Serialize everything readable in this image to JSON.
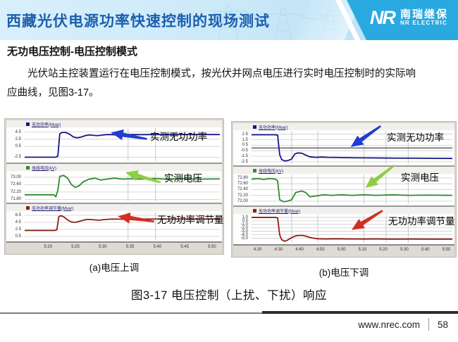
{
  "header": {
    "title": "西藏光伏电源功率快速控制的现场测试",
    "logo": {
      "nr": "NR",
      "cn": "南瑞继保",
      "en": "NR ELECTRIC"
    }
  },
  "content": {
    "heading": "无功电压控制-电压控制模式",
    "paragraph": "光伏站主控装置运行在电压控制模式，按光伏并网点电压进行实时电压控制时的实际响应曲线，见图3-17。",
    "figure_caption": "图3-17 电压控制（上扰、下扰）响应"
  },
  "footer": {
    "url": "www.nrec.com",
    "page": "58"
  },
  "chart_data": [
    {
      "type": "line",
      "caption": "(a)电压上调",
      "xticks": [
        "5:20",
        "5:25",
        "5:30",
        "5:35",
        "5:40",
        "5:45",
        "5:50"
      ],
      "vgrid": [
        0.53,
        0.67
      ],
      "panels": [
        {
          "legend": "无功功率(Mvar)",
          "color": "#15158a",
          "yticks": [
            "4.5",
            "2.5",
            "0.5",
            "-2.5"
          ],
          "ymin": -3.6,
          "ymax": 5.6,
          "annotation": {
            "text": "实测无功功率",
            "color": "#1f3ed0",
            "angle": 10
          },
          "points": [
            [
              0,
              -2.5
            ],
            [
              0.16,
              -2.5
            ],
            [
              0.17,
              -2.2
            ],
            [
              0.18,
              4.0
            ],
            [
              0.19,
              4.35
            ],
            [
              0.21,
              4.4
            ],
            [
              0.23,
              3.9
            ],
            [
              0.25,
              3.1
            ],
            [
              0.27,
              2.9
            ],
            [
              0.29,
              3.1
            ],
            [
              0.31,
              3.5
            ],
            [
              0.33,
              3.7
            ],
            [
              0.35,
              3.6
            ],
            [
              0.37,
              3.5
            ],
            [
              0.39,
              3.6
            ],
            [
              0.41,
              3.75
            ],
            [
              0.44,
              3.8
            ],
            [
              0.47,
              3.7
            ],
            [
              0.5,
              3.75
            ],
            [
              0.54,
              3.8
            ],
            [
              0.6,
              3.78
            ],
            [
              0.68,
              3.8
            ],
            [
              0.78,
              3.8
            ],
            [
              0.88,
              3.8
            ],
            [
              1,
              3.8
            ]
          ]
        },
        {
          "legend": "母线电压(kV)",
          "color": "#2e8b2e",
          "yticks": [
            "73.00",
            "72.60",
            "72.20",
            "71.80"
          ],
          "ymin": 71.7,
          "ymax": 73.3,
          "annotation": {
            "text": "实测电压",
            "color": "#8fce44",
            "angle": 16
          },
          "points": [
            [
              0,
              72.05
            ],
            [
              0.15,
              72.05
            ],
            [
              0.16,
              71.95
            ],
            [
              0.17,
              72.3
            ],
            [
              0.18,
              73.05
            ],
            [
              0.2,
              73.1
            ],
            [
              0.22,
              72.95
            ],
            [
              0.24,
              72.6
            ],
            [
              0.26,
              72.45
            ],
            [
              0.28,
              72.55
            ],
            [
              0.3,
              72.75
            ],
            [
              0.33,
              72.9
            ],
            [
              0.36,
              72.95
            ],
            [
              0.39,
              72.85
            ],
            [
              0.42,
              72.9
            ],
            [
              0.46,
              72.95
            ],
            [
              0.5,
              72.9
            ],
            [
              0.55,
              72.92
            ],
            [
              0.6,
              72.9
            ],
            [
              0.66,
              72.93
            ],
            [
              0.72,
              72.9
            ],
            [
              0.8,
              72.92
            ],
            [
              0.9,
              72.9
            ],
            [
              1,
              72.91
            ]
          ]
        },
        {
          "legend": "无功功率调节量(Mvar)",
          "color": "#8b2015",
          "yticks": [
            "6.5",
            "4.5",
            "2.5",
            "0.5"
          ],
          "ymin": -0.5,
          "ymax": 7.5,
          "annotation": {
            "text": "无功功率调节量",
            "color": "#d03020",
            "angle": 8
          },
          "points": [
            [
              0,
              2.2
            ],
            [
              0.155,
              2.2
            ],
            [
              0.165,
              2.4
            ],
            [
              0.175,
              6.1
            ],
            [
              0.185,
              6.4
            ],
            [
              0.2,
              6.1
            ],
            [
              0.22,
              5.2
            ],
            [
              0.24,
              4.6
            ],
            [
              0.26,
              4.5
            ],
            [
              0.28,
              4.8
            ],
            [
              0.3,
              5.1
            ],
            [
              0.32,
              5.35
            ],
            [
              0.35,
              5.25
            ],
            [
              0.38,
              5.1
            ],
            [
              0.41,
              5.3
            ],
            [
              0.45,
              5.45
            ],
            [
              0.5,
              5.4
            ],
            [
              0.56,
              5.45
            ],
            [
              0.63,
              5.45
            ],
            [
              0.72,
              5.45
            ],
            [
              0.82,
              5.45
            ],
            [
              1,
              5.45
            ]
          ]
        }
      ]
    },
    {
      "type": "line",
      "caption": "(b)电压下调",
      "xticks": [
        "4:20",
        "4:30",
        "4:40",
        "4:50",
        "5:00",
        "5:10",
        "5:20",
        "5:30",
        "5:40",
        "5:50"
      ],
      "vgrid": [
        0.2,
        0.33,
        0.56,
        0.67,
        0.78
      ],
      "panels": [
        {
          "legend": "无功功率(Mvar)",
          "color": "#15158a",
          "yticks": [
            "2.5",
            "1.5",
            "0.5",
            "-0.5",
            "-1.5",
            "-2.5"
          ],
          "ymin": -2.9,
          "ymax": 3.1,
          "zero": 0,
          "annotation": {
            "text": "实测无功功率",
            "color": "#1f3ed0",
            "angle": -35
          },
          "points": [
            [
              0,
              2.4
            ],
            [
              0.12,
              2.4
            ],
            [
              0.13,
              2.3
            ],
            [
              0.14,
              -1.2
            ],
            [
              0.15,
              -2.1
            ],
            [
              0.165,
              -2.35
            ],
            [
              0.18,
              -2.3
            ],
            [
              0.2,
              -2.0
            ],
            [
              0.215,
              -1.1
            ],
            [
              0.23,
              -0.9
            ],
            [
              0.25,
              -0.95
            ],
            [
              0.27,
              -1.3
            ],
            [
              0.29,
              -1.6
            ],
            [
              0.32,
              -1.7
            ],
            [
              0.35,
              -1.65
            ],
            [
              0.38,
              -1.7
            ],
            [
              0.42,
              -1.72
            ],
            [
              0.47,
              -1.75
            ],
            [
              0.52,
              -1.78
            ],
            [
              0.58,
              -1.8
            ],
            [
              0.65,
              -1.82
            ],
            [
              0.72,
              -1.85
            ],
            [
              0.8,
              -1.85
            ],
            [
              0.9,
              -1.88
            ],
            [
              1,
              -1.9
            ]
          ]
        },
        {
          "legend": "母线电压(kV)",
          "color": "#2e8b2e",
          "yticks": [
            "72.80",
            "72.60",
            "72.40",
            "72.20",
            "72.00"
          ],
          "ymin": 71.9,
          "ymax": 72.92,
          "annotation": {
            "text": "实测电压",
            "color": "#8fce44",
            "angle": -38
          },
          "points": [
            [
              0,
              72.76
            ],
            [
              0.03,
              72.78
            ],
            [
              0.06,
              72.75
            ],
            [
              0.09,
              72.78
            ],
            [
              0.12,
              72.76
            ],
            [
              0.13,
              72.7
            ],
            [
              0.14,
              72.05
            ],
            [
              0.16,
              71.98
            ],
            [
              0.18,
              72.0
            ],
            [
              0.2,
              72.05
            ],
            [
              0.22,
              72.3
            ],
            [
              0.25,
              72.35
            ],
            [
              0.27,
              72.3
            ],
            [
              0.29,
              72.15
            ],
            [
              0.32,
              72.18
            ],
            [
              0.36,
              72.22
            ],
            [
              0.4,
              72.2
            ],
            [
              0.45,
              72.22
            ],
            [
              0.5,
              72.2
            ],
            [
              0.56,
              72.22
            ],
            [
              0.62,
              72.2
            ],
            [
              0.7,
              72.22
            ],
            [
              0.78,
              72.2
            ],
            [
              0.88,
              72.21
            ],
            [
              1,
              72.2
            ]
          ]
        },
        {
          "legend": "无功功率调节量(Mvar)",
          "color": "#8b2015",
          "yticks": [
            "1.0",
            "0.0",
            "-1.0",
            "-2.0",
            "-3.0",
            "-4.0",
            "-5.0"
          ],
          "ymin": -6.3,
          "ymax": 1.8,
          "annotation": {
            "text": "无功功率调节量",
            "color": "#d03020",
            "angle": -32
          },
          "points": [
            [
              0,
              1.0
            ],
            [
              0.12,
              1.0
            ],
            [
              0.13,
              0.85
            ],
            [
              0.14,
              -4.0
            ],
            [
              0.15,
              -5.4
            ],
            [
              0.165,
              -5.85
            ],
            [
              0.18,
              -5.5
            ],
            [
              0.2,
              -4.8
            ],
            [
              0.22,
              -4.3
            ],
            [
              0.25,
              -4.15
            ],
            [
              0.27,
              -4.4
            ],
            [
              0.3,
              -4.9
            ],
            [
              0.33,
              -5.15
            ],
            [
              0.37,
              -5.2
            ],
            [
              0.42,
              -5.15
            ],
            [
              0.48,
              -5.2
            ],
            [
              0.55,
              -5.22
            ],
            [
              0.62,
              -5.2
            ],
            [
              0.7,
              -5.25
            ],
            [
              0.8,
              -5.22
            ],
            [
              0.9,
              -5.25
            ],
            [
              1,
              -5.25
            ]
          ]
        }
      ]
    }
  ]
}
